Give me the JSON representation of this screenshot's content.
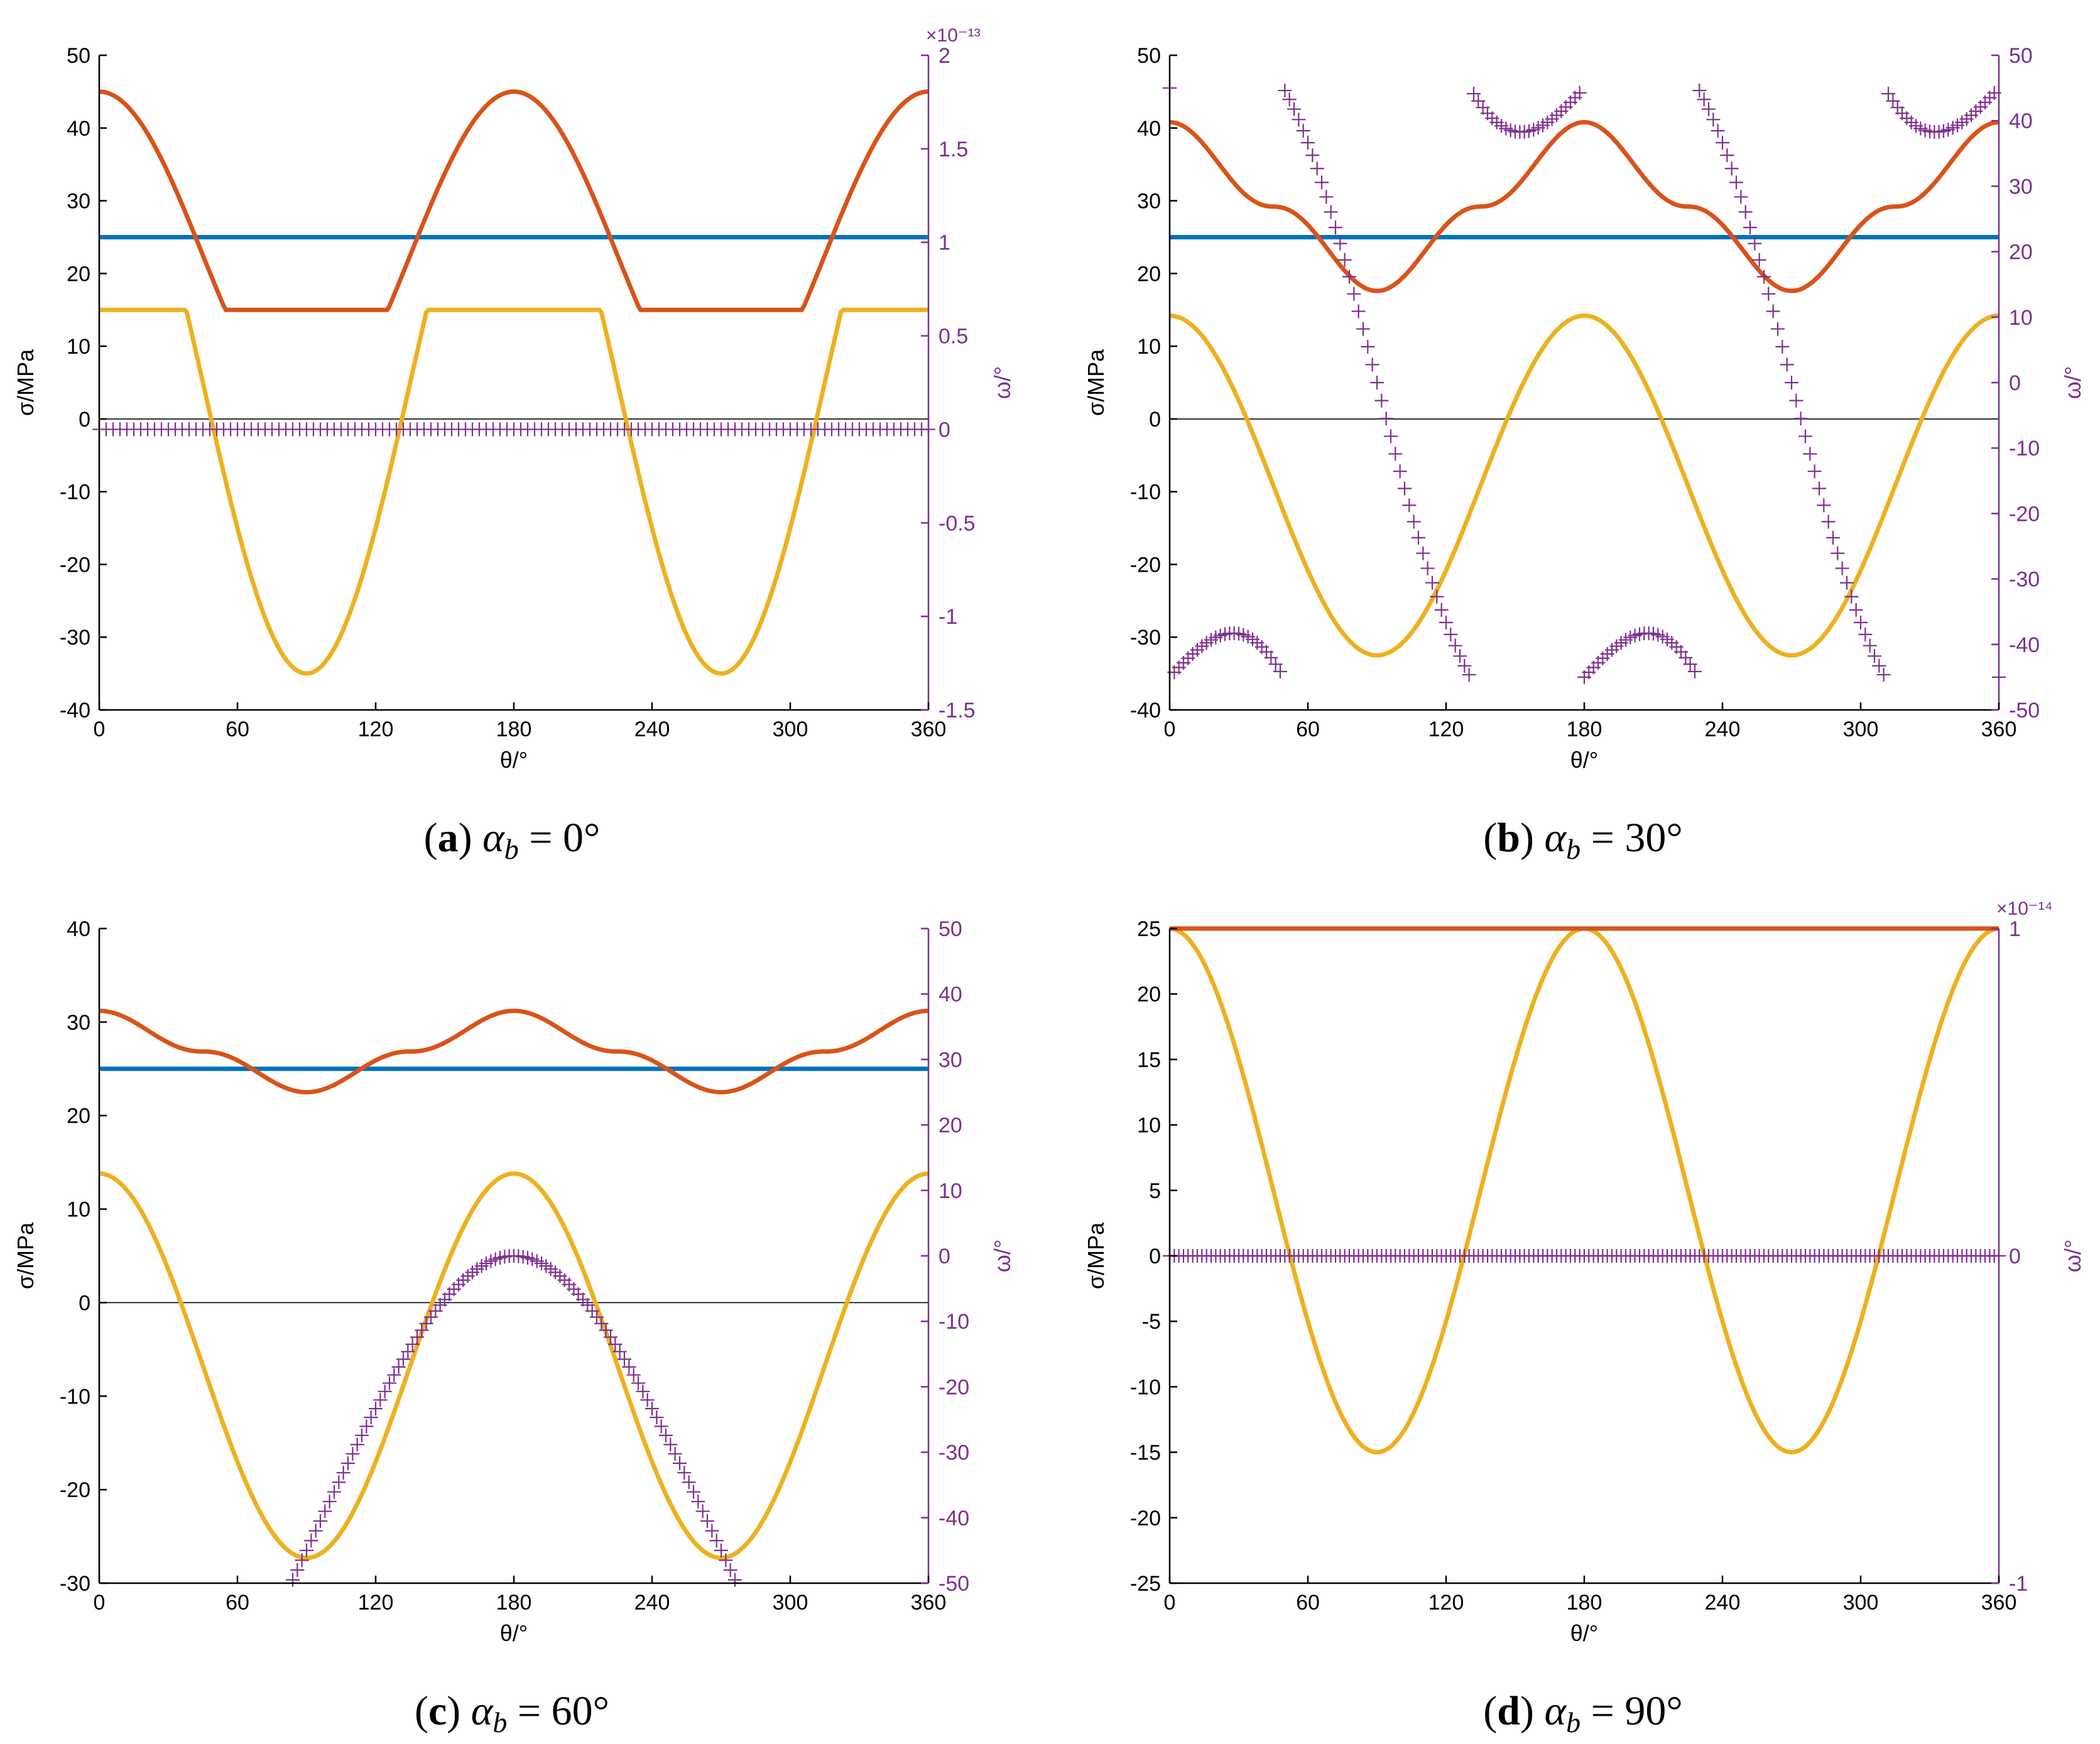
{
  "figure": {
    "colors": {
      "sigma1": "#D95319",
      "sigma3": "#EDB120",
      "sigma_b": "#0072BD",
      "omega": "#7E2F8E",
      "zero_line": "#000000"
    }
  },
  "chart_data": [
    {
      "id": "a",
      "type": "line",
      "caption": {
        "letter": "a",
        "symbol": "α",
        "subscript": "b",
        "value": " = 0°"
      },
      "xlabel": "θ/°",
      "ylabel": "σ/MPa",
      "y2label": "ω/°",
      "xlim": [
        0,
        360
      ],
      "xticks": [
        "0",
        "60",
        "120",
        "180",
        "240",
        "300",
        "360"
      ],
      "ylim": [
        -40,
        50
      ],
      "yticks": [
        "50",
        "40",
        "30",
        "20",
        "10",
        "0",
        "-10",
        "-20",
        "-30",
        "-40"
      ],
      "y2lim": [
        -1.5,
        2
      ],
      "y2ticks": [
        "2",
        "1.5",
        "1",
        "0.5",
        "0",
        "-0.5",
        "-1",
        "-1.5"
      ],
      "y2_exponent": "×10⁻¹³",
      "sigma_b": 25,
      "series": [
        {
          "name": "sigma1",
          "model": "max",
          "A": 45,
          "B": 15
        },
        {
          "name": "sigma3",
          "model": "min",
          "A": 45,
          "B": 15,
          "C": -35
        },
        {
          "name": "omega",
          "model": "tiny",
          "scale": 1e-13
        }
      ]
    },
    {
      "id": "b",
      "type": "line",
      "caption": {
        "letter": "b",
        "symbol": "α",
        "subscript": "b",
        "value": " = 30°"
      },
      "xlabel": "θ/°",
      "ylabel": "σ/MPa",
      "y2label": "ω/°",
      "xlim": [
        0,
        360
      ],
      "xticks": [
        "0",
        "60",
        "120",
        "180",
        "240",
        "300",
        "360"
      ],
      "ylim": [
        -40,
        50
      ],
      "yticks": [
        "50",
        "40",
        "30",
        "20",
        "10",
        "0",
        "-10",
        "-20",
        "-30",
        "-40"
      ],
      "y2lim": [
        -50,
        50
      ],
      "y2ticks": [
        "50",
        "40",
        "30",
        "20",
        "10",
        "0",
        "-10",
        "-20",
        "-30",
        "-40",
        "-50"
      ],
      "sigma_b": 25,
      "series": [
        {
          "name": "sigma1",
          "model": "bump",
          "max": 40.8,
          "min": 17.6
        },
        {
          "name": "sigma3",
          "model": "bump",
          "max": 14.2,
          "min": -32.5
        },
        {
          "name": "omega",
          "model": "wrap",
          "amplitude": 86.8,
          "wrap_at": 45
        }
      ]
    },
    {
      "id": "c",
      "type": "line",
      "caption": {
        "letter": "c",
        "symbol": "α",
        "subscript": "b",
        "value": " = 60°"
      },
      "xlabel": "θ/°",
      "ylabel": "σ/MPa",
      "y2label": "ω/°",
      "xlim": [
        0,
        360
      ],
      "xticks": [
        "0",
        "60",
        "120",
        "180",
        "240",
        "300",
        "360"
      ],
      "ylim": [
        -30,
        40
      ],
      "yticks": [
        "40",
        "30",
        "20",
        "10",
        "0",
        "-10",
        "-20",
        "-30"
      ],
      "y2lim": [
        -50,
        50
      ],
      "y2ticks": [
        "50",
        "40",
        "30",
        "20",
        "10",
        "0",
        "-10",
        "-20",
        "-30",
        "-40",
        "-50"
      ],
      "sigma_b": 25,
      "series": [
        {
          "name": "sigma1",
          "model": "bump",
          "max": 31.2,
          "min": 22.5
        },
        {
          "name": "sigma3",
          "model": "bump",
          "max": 13.8,
          "min": -27.3
        },
        {
          "name": "omega",
          "model": "s_curve",
          "amplitude": 45
        }
      ]
    },
    {
      "id": "d",
      "type": "line",
      "caption": {
        "letter": "d",
        "symbol": "α",
        "subscript": "b",
        "value": " = 90°"
      },
      "xlabel": "θ/°",
      "ylabel": "σ/MPa",
      "y2label": "ω/°",
      "xlim": [
        0,
        360
      ],
      "xticks": [
        "0",
        "60",
        "120",
        "180",
        "240",
        "300",
        "360"
      ],
      "ylim": [
        -25,
        25
      ],
      "yticks": [
        "25",
        "20",
        "15",
        "10",
        "5",
        "0",
        "-5",
        "-10",
        "-15",
        "-20",
        "-25"
      ],
      "y2lim": [
        -1,
        1
      ],
      "y2ticks": [
        "1",
        "0",
        "-1"
      ],
      "y2_exponent": "×10⁻¹⁴",
      "sigma_b": null,
      "series": [
        {
          "name": "sigma1",
          "model": "const",
          "value": 25
        },
        {
          "name": "sigma3",
          "model": "cos",
          "A": 5,
          "B": 20
        },
        {
          "name": "omega",
          "model": "skew",
          "scale": 1e-14
        }
      ]
    }
  ]
}
